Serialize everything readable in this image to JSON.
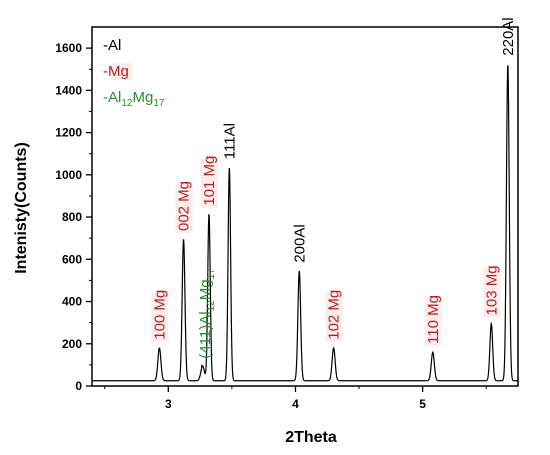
{
  "chart_data": {
    "type": "line",
    "title": "",
    "xlabel": "2Theta",
    "ylabel": "Intenisty(Counts)",
    "xlim": [
      2.4,
      5.75
    ],
    "ylim": [
      0,
      1700
    ],
    "x_ticks": [
      3,
      4,
      5
    ],
    "x_tick_labels": [
      "3",
      "4",
      "5"
    ],
    "y_ticks": [
      0,
      200,
      400,
      600,
      800,
      1000,
      1200,
      1400,
      1600
    ],
    "y_tick_labels": [
      "0",
      "200",
      "400",
      "600",
      "800",
      "1000",
      "1200",
      "1400",
      "1600"
    ],
    "grid": false,
    "baseline": 25,
    "peaks": [
      {
        "x": 2.93,
        "y": 180,
        "width": 0.012
      },
      {
        "x": 3.12,
        "y": 695,
        "width": 0.011
      },
      {
        "x": 3.27,
        "y": 95,
        "width": 0.014
      },
      {
        "x": 3.32,
        "y": 815,
        "width": 0.01
      },
      {
        "x": 3.48,
        "y": 1035,
        "width": 0.01
      },
      {
        "x": 4.03,
        "y": 545,
        "width": 0.011
      },
      {
        "x": 4.3,
        "y": 180,
        "width": 0.012
      },
      {
        "x": 5.08,
        "y": 160,
        "width": 0.012
      },
      {
        "x": 5.54,
        "y": 295,
        "width": 0.011
      },
      {
        "x": 5.67,
        "y": 1525,
        "width": 0.011
      }
    ],
    "annotations": [
      {
        "text": "100 Mg",
        "x": 2.93,
        "y": 200,
        "color": "#b22222",
        "rotate": true,
        "boxed": true
      },
      {
        "text": "002 Mg",
        "x": 3.12,
        "y": 715,
        "color": "#b22222",
        "rotate": true,
        "boxed": true
      },
      {
        "text": "101 Mg",
        "x": 3.32,
        "y": 835,
        "color": "#b22222",
        "rotate": true,
        "boxed": true
      },
      {
        "text": "111Al",
        "x": 3.48,
        "y": 1055,
        "color": "#000000",
        "rotate": true,
        "boxed": false
      },
      {
        "text": "200Al",
        "x": 4.03,
        "y": 565,
        "color": "#000000",
        "rotate": true,
        "boxed": false
      },
      {
        "text": "102 Mg",
        "x": 4.3,
        "y": 200,
        "color": "#b22222",
        "rotate": true,
        "boxed": true
      },
      {
        "text": "110 Mg",
        "x": 5.08,
        "y": 180,
        "color": "#b22222",
        "rotate": true,
        "boxed": true
      },
      {
        "text": "103 Mg",
        "x": 5.54,
        "y": 315,
        "color": "#b22222",
        "rotate": true,
        "boxed": true
      },
      {
        "text": "220Al",
        "x": 5.67,
        "y": 1545,
        "color": "#000000",
        "rotate": true,
        "boxed": false
      }
    ],
    "special_annotation": {
      "prefix": "(411)Al",
      "sub1": "12",
      "mid": "Mg",
      "sub2": "17",
      "color": "#2e8b2e",
      "x": 3.28,
      "y": 120
    },
    "legend": {
      "placement": "top-left",
      "entries": [
        {
          "text": "-Al",
          "color": "#000000"
        },
        {
          "text": "-Mg",
          "color": "#b22222"
        },
        {
          "prefix": "-Al",
          "sub1": "12",
          "mid": "Mg",
          "sub2": "17",
          "color": "#2e8b2e"
        }
      ]
    }
  }
}
